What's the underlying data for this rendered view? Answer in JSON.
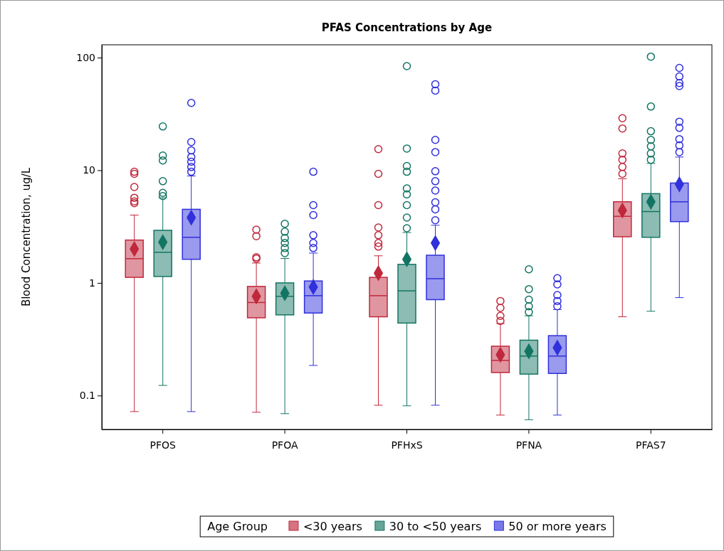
{
  "chart_data": {
    "type": "box",
    "title": "PFAS Concentrations by Age",
    "ylabel": "Blood Concentration, ug/L",
    "legend_title": "Age Group",
    "legend": "bottom",
    "log": true,
    "grid": false,
    "marker": "diamond",
    "categories": [
      "PFOS",
      "PFOA",
      "PFHxS",
      "PFNA",
      "PFAS7"
    ],
    "ylim": [
      0.05,
      130
    ],
    "yticks": [
      0.1,
      1,
      10,
      100
    ],
    "series": [
      {
        "name": "<30 years",
        "color": "#c0283c",
        "boxes": [
          {
            "low": 0.072,
            "q1": 1.12,
            "median": 1.64,
            "q3": 2.4,
            "high": 4.0,
            "mean": 2.0,
            "outliers": [
              9.7,
              9.3,
              7.1,
              5.7,
              5.3,
              5.1
            ]
          },
          {
            "low": 0.071,
            "q1": 0.49,
            "median": 0.67,
            "q3": 0.93,
            "high": 1.5,
            "mean": 0.76,
            "outliers": [
              2.97,
              2.6,
              1.69,
              1.64
            ]
          },
          {
            "low": 0.082,
            "q1": 0.5,
            "median": 0.77,
            "q3": 1.12,
            "high": 1.74,
            "mean": 1.22,
            "outliers": [
              15.4,
              9.3,
              4.9,
              3.1,
              2.65,
              2.26,
              2.1
            ]
          },
          {
            "low": 0.067,
            "q1": 0.16,
            "median": 0.205,
            "q3": 0.274,
            "high": 0.436,
            "mean": 0.23,
            "outliers": [
              0.69,
              0.6,
              0.51,
              0.46
            ]
          },
          {
            "low": 0.5,
            "q1": 2.57,
            "median": 3.9,
            "q3": 5.25,
            "high": 8.4,
            "mean": 4.4,
            "outliers": [
              29,
              23.5,
              14.1,
              12.4,
              10.7,
              9.3
            ]
          }
        ]
      },
      {
        "name": "30 to <50 years",
        "color": "#127563",
        "boxes": [
          {
            "low": 0.123,
            "q1": 1.14,
            "median": 1.87,
            "q3": 2.93,
            "high": 5.7,
            "mean": 2.3,
            "outliers": [
              24.5,
              13.5,
              12.2,
              8.0,
              6.3,
              5.9
            ]
          },
          {
            "low": 0.069,
            "q1": 0.52,
            "median": 0.76,
            "q3": 1.0,
            "high": 1.65,
            "mean": 0.81,
            "outliers": [
              3.35,
              2.85,
              2.5,
              2.26,
              2.04,
              1.84
            ]
          },
          {
            "low": 0.081,
            "q1": 0.44,
            "median": 0.85,
            "q3": 1.46,
            "high": 2.8,
            "mean": 1.62,
            "outliers": [
              84,
              15.6,
              10.9,
              9.7,
              6.9,
              6.1,
              4.9,
              3.8,
              3.06
            ]
          },
          {
            "low": 0.061,
            "q1": 0.155,
            "median": 0.224,
            "q3": 0.31,
            "high": 0.51,
            "mean": 0.247,
            "outliers": [
              1.32,
              0.88,
              0.71,
              0.62,
              0.55
            ]
          },
          {
            "low": 0.56,
            "q1": 2.54,
            "median": 4.3,
            "q3": 6.2,
            "high": 11.5,
            "mean": 5.25,
            "outliers": [
              102,
              36.8,
              22.2,
              18.6,
              16.3,
              14.1,
              12.4
            ]
          }
        ]
      },
      {
        "name": "50 or more years",
        "color": "#3030dc",
        "boxes": [
          {
            "low": 0.072,
            "q1": 1.62,
            "median": 2.54,
            "q3": 4.5,
            "high": 8.9,
            "mean": 3.8,
            "outliers": [
              39.6,
              17.8,
              15,
              13.1,
              11.9,
              10.7,
              9.7
            ]
          },
          {
            "low": 0.185,
            "q1": 0.54,
            "median": 0.77,
            "q3": 1.04,
            "high": 1.84,
            "mean": 0.92,
            "outliers": [
              9.7,
              4.9,
              4.0,
              2.65,
              2.26,
              2.04
            ]
          },
          {
            "low": 0.082,
            "q1": 0.71,
            "median": 1.09,
            "q3": 1.76,
            "high": 3.25,
            "mean": 2.26,
            "outliers": [
              58,
              51,
              18.6,
              14.5,
              9.8,
              8.0,
              6.6,
              5.2,
              4.5,
              3.6
            ]
          },
          {
            "low": 0.067,
            "q1": 0.157,
            "median": 0.224,
            "q3": 0.34,
            "high": 0.58,
            "mean": 0.266,
            "outliers": [
              1.1,
              0.97,
              0.78,
              0.69,
              0.62
            ]
          },
          {
            "low": 0.74,
            "q1": 3.5,
            "median": 5.25,
            "q3": 7.7,
            "high": 13.1,
            "mean": 7.5,
            "outliers": [
              81,
              68,
              59.5,
              56,
              27,
              23.8,
              18.9,
              16.6,
              14.5
            ]
          }
        ]
      }
    ]
  }
}
